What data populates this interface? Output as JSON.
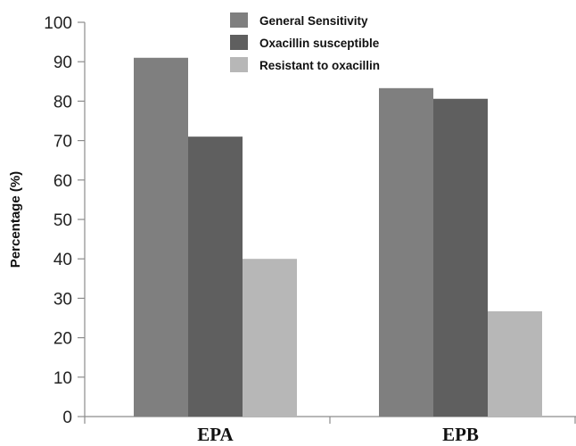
{
  "chart_data": {
    "type": "bar",
    "categories": [
      "EPA",
      "EPB"
    ],
    "series": [
      {
        "name": "General Sensitivity",
        "values": [
          91,
          83.3
        ],
        "color": "#7f7f7f"
      },
      {
        "name": "Oxacillin susceptible",
        "values": [
          71,
          80.6
        ],
        "color": "#5f5f5f"
      },
      {
        "name": "Resistant to oxacillin",
        "values": [
          40,
          26.7
        ],
        "color": "#b7b7b7"
      }
    ],
    "title": "",
    "xlabel": "",
    "ylabel": "Percentage (%)",
    "ylim": [
      0,
      100
    ],
    "yticks": [
      0,
      10,
      20,
      30,
      40,
      50,
      60,
      70,
      80,
      90,
      100
    ],
    "grid": false,
    "legend_position": "top-center"
  }
}
